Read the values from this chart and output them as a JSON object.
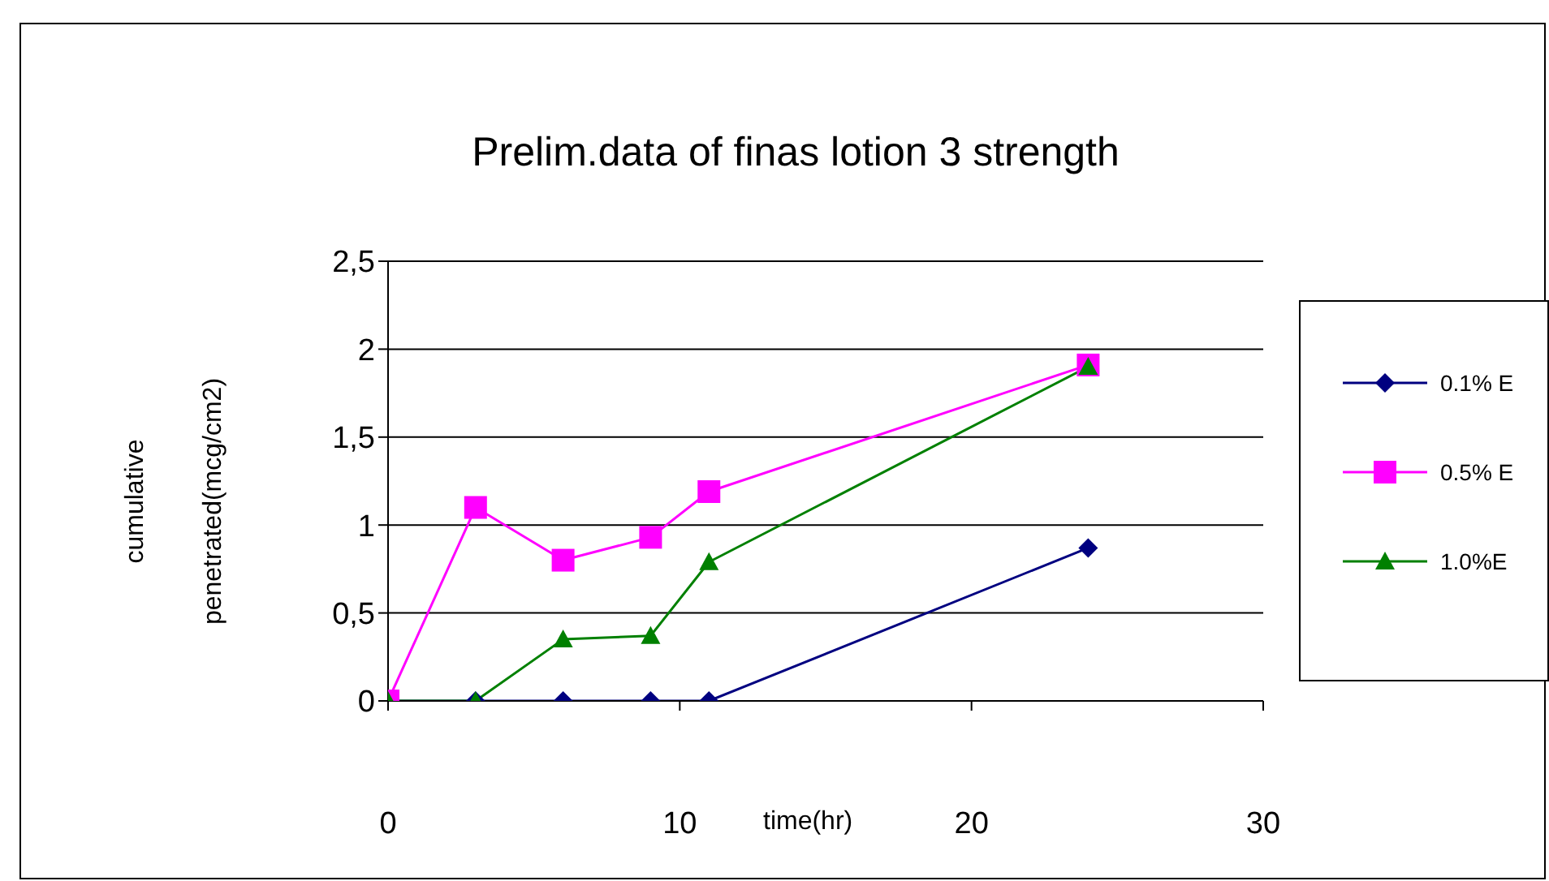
{
  "chart_data": {
    "type": "line",
    "title": "Prelim.data of finas lotion 3 strength",
    "xlabel": "time(hr)",
    "ylabel": "cumulative\npenetrated(mcg/cm2)",
    "x": [
      0,
      3,
      6,
      9,
      11,
      24
    ],
    "series": [
      {
        "name": "0.1% E",
        "color": "#000080",
        "marker": "diamond",
        "values": [
          0,
          0,
          0,
          0,
          0,
          0.87
        ]
      },
      {
        "name": "0.5% E",
        "color": "#ff00ff",
        "marker": "square",
        "values": [
          0,
          1.1,
          0.8,
          0.93,
          1.19,
          1.91
        ]
      },
      {
        "name": "1.0%E",
        "color": "#008000",
        "marker": "triangle",
        "values": [
          0,
          0,
          0.35,
          0.37,
          0.79,
          1.9
        ]
      }
    ],
    "xlim": [
      0,
      30
    ],
    "xticks": [
      0,
      10,
      20,
      30
    ],
    "ylim": [
      0,
      2.5
    ],
    "yticks": [
      0,
      {
        "value": 0.5,
        "label": "0,5"
      },
      1,
      {
        "value": 1.5,
        "label": "1,5"
      },
      2,
      {
        "value": 2.5,
        "label": "2,5"
      }
    ],
    "grid": "y",
    "legend": "right"
  }
}
